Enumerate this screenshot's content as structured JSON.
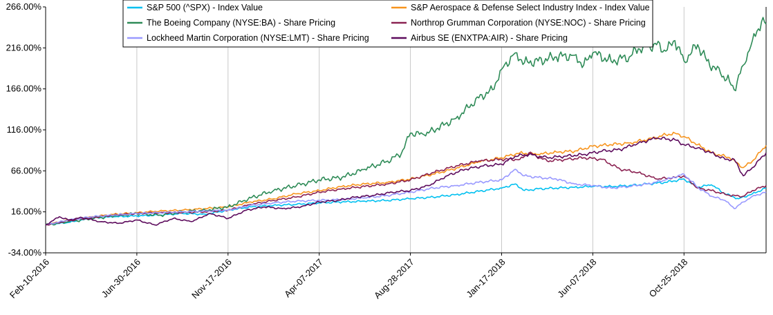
{
  "chart_data": {
    "type": "line",
    "title": "",
    "xlabel": "",
    "ylabel": "",
    "ylim": [
      -34,
      266
    ],
    "y_ticks": [
      "-34.00%",
      "16.00%",
      "66.00%",
      "116.00%",
      "166.00%",
      "216.00%",
      "266.00%"
    ],
    "y_tick_values": [
      -34,
      16,
      66,
      116,
      166,
      216,
      266
    ],
    "x_ticks": [
      "Feb-10-2016",
      "Jun-30-2016",
      "Nov-17-2016",
      "Apr-07-2017",
      "Aug-28-2017",
      "Jan-17-2018",
      "Jun-07-2018",
      "Oct-25-2018"
    ],
    "x_tick_index": [
      0,
      20,
      40,
      60,
      80,
      100,
      120,
      140
    ],
    "x_max_index": 158,
    "grid": "vertical",
    "legend_position": "top",
    "series": [
      {
        "name": "S&P 500 (^SPX) - Index Value",
        "color": "#00c0f0",
        "points": [
          [
            0,
            0
          ],
          [
            5,
            3
          ],
          [
            10,
            8
          ],
          [
            15,
            10
          ],
          [
            20,
            11
          ],
          [
            25,
            12
          ],
          [
            30,
            14
          ],
          [
            35,
            13
          ],
          [
            40,
            18
          ],
          [
            45,
            22
          ],
          [
            50,
            24
          ],
          [
            55,
            25
          ],
          [
            60,
            27
          ],
          [
            65,
            28
          ],
          [
            70,
            29
          ],
          [
            75,
            30
          ],
          [
            80,
            32
          ],
          [
            85,
            34
          ],
          [
            90,
            37
          ],
          [
            95,
            41
          ],
          [
            100,
            45
          ],
          [
            103,
            50
          ],
          [
            105,
            42
          ],
          [
            108,
            44
          ],
          [
            112,
            45
          ],
          [
            116,
            46
          ],
          [
            120,
            47
          ],
          [
            124,
            47
          ],
          [
            128,
            48
          ],
          [
            132,
            50
          ],
          [
            136,
            52
          ],
          [
            140,
            56
          ],
          [
            143,
            46
          ],
          [
            146,
            49
          ],
          [
            149,
            38
          ],
          [
            152,
            32
          ],
          [
            155,
            38
          ],
          [
            158,
            45
          ]
        ]
      },
      {
        "name": "S&P Aerospace & Defense Select Industry Index - Index Value",
        "color": "#f7941d",
        "points": [
          [
            0,
            0
          ],
          [
            5,
            6
          ],
          [
            10,
            10
          ],
          [
            15,
            13
          ],
          [
            20,
            15
          ],
          [
            25,
            17
          ],
          [
            30,
            18
          ],
          [
            35,
            20
          ],
          [
            40,
            22
          ],
          [
            45,
            28
          ],
          [
            50,
            32
          ],
          [
            55,
            38
          ],
          [
            60,
            42
          ],
          [
            65,
            47
          ],
          [
            70,
            50
          ],
          [
            75,
            52
          ],
          [
            80,
            56
          ],
          [
            85,
            62
          ],
          [
            90,
            69
          ],
          [
            95,
            77
          ],
          [
            100,
            82
          ],
          [
            104,
            88
          ],
          [
            108,
            86
          ],
          [
            112,
            89
          ],
          [
            116,
            90
          ],
          [
            120,
            96
          ],
          [
            124,
            98
          ],
          [
            128,
            100
          ],
          [
            132,
            104
          ],
          [
            136,
            110
          ],
          [
            138,
            112
          ],
          [
            140,
            108
          ],
          [
            143,
            98
          ],
          [
            146,
            88
          ],
          [
            150,
            82
          ],
          [
            153,
            70
          ],
          [
            155,
            78
          ],
          [
            158,
            97
          ]
        ]
      },
      {
        "name": "The Boeing Company (NYSE:BA) - Share Pricing",
        "color": "#2e8b57",
        "points": [
          [
            0,
            0
          ],
          [
            5,
            4
          ],
          [
            10,
            8
          ],
          [
            15,
            11
          ],
          [
            20,
            14
          ],
          [
            25,
            12
          ],
          [
            30,
            16
          ],
          [
            35,
            18
          ],
          [
            40,
            22
          ],
          [
            45,
            33
          ],
          [
            50,
            42
          ],
          [
            55,
            48
          ],
          [
            60,
            55
          ],
          [
            65,
            58
          ],
          [
            70,
            68
          ],
          [
            75,
            78
          ],
          [
            78,
            87
          ],
          [
            80,
            112
          ],
          [
            83,
            110
          ],
          [
            86,
            118
          ],
          [
            90,
            130
          ],
          [
            95,
            155
          ],
          [
            98,
            165
          ],
          [
            100,
            190
          ],
          [
            103,
            210
          ],
          [
            105,
            198
          ],
          [
            108,
            200
          ],
          [
            112,
            205
          ],
          [
            116,
            207
          ],
          [
            118,
            195
          ],
          [
            120,
            210
          ],
          [
            124,
            200
          ],
          [
            128,
            205
          ],
          [
            130,
            215
          ],
          [
            134,
            220
          ],
          [
            136,
            212
          ],
          [
            138,
            225
          ],
          [
            140,
            200
          ],
          [
            143,
            220
          ],
          [
            145,
            200
          ],
          [
            148,
            185
          ],
          [
            150,
            175
          ],
          [
            151,
            165
          ],
          [
            153,
            195
          ],
          [
            155,
            225
          ],
          [
            157,
            248
          ],
          [
            158,
            245
          ]
        ]
      },
      {
        "name": "Northrop Grumman Corporation (NYSE:NOC) - Share Pricing",
        "color": "#8b2252",
        "points": [
          [
            0,
            0
          ],
          [
            5,
            5
          ],
          [
            10,
            9
          ],
          [
            15,
            12
          ],
          [
            20,
            14
          ],
          [
            25,
            15
          ],
          [
            30,
            15
          ],
          [
            35,
            16
          ],
          [
            40,
            18
          ],
          [
            45,
            25
          ],
          [
            50,
            30
          ],
          [
            55,
            34
          ],
          [
            60,
            40
          ],
          [
            65,
            44
          ],
          [
            70,
            47
          ],
          [
            75,
            50
          ],
          [
            80,
            55
          ],
          [
            85,
            64
          ],
          [
            90,
            72
          ],
          [
            95,
            78
          ],
          [
            100,
            80
          ],
          [
            104,
            80
          ],
          [
            106,
            88
          ],
          [
            110,
            78
          ],
          [
            114,
            80
          ],
          [
            118,
            82
          ],
          [
            122,
            80
          ],
          [
            126,
            68
          ],
          [
            130,
            64
          ],
          [
            134,
            56
          ],
          [
            138,
            58
          ],
          [
            140,
            60
          ],
          [
            143,
            45
          ],
          [
            146,
            42
          ],
          [
            150,
            36
          ],
          [
            153,
            35
          ],
          [
            155,
            42
          ],
          [
            158,
            48
          ]
        ]
      },
      {
        "name": "Lockheed Martin Corporation (NYSE:LMT) - Share Pricing",
        "color": "#9999ff",
        "points": [
          [
            0,
            0
          ],
          [
            5,
            6
          ],
          [
            10,
            10
          ],
          [
            15,
            12
          ],
          [
            20,
            14
          ],
          [
            25,
            15
          ],
          [
            30,
            16
          ],
          [
            35,
            17
          ],
          [
            40,
            18
          ],
          [
            45,
            24
          ],
          [
            50,
            27
          ],
          [
            55,
            29
          ],
          [
            60,
            30
          ],
          [
            65,
            31
          ],
          [
            70,
            33
          ],
          [
            75,
            36
          ],
          [
            80,
            40
          ],
          [
            85,
            45
          ],
          [
            90,
            48
          ],
          [
            95,
            52
          ],
          [
            100,
            55
          ],
          [
            103,
            68
          ],
          [
            105,
            60
          ],
          [
            108,
            58
          ],
          [
            112,
            56
          ],
          [
            116,
            50
          ],
          [
            120,
            48
          ],
          [
            124,
            45
          ],
          [
            128,
            47
          ],
          [
            132,
            50
          ],
          [
            136,
            55
          ],
          [
            140,
            62
          ],
          [
            143,
            46
          ],
          [
            146,
            35
          ],
          [
            149,
            30
          ],
          [
            151,
            20
          ],
          [
            153,
            28
          ],
          [
            155,
            35
          ],
          [
            158,
            40
          ]
        ]
      },
      {
        "name": "Airbus SE (ENXTPA:AIR) - Share Pricing",
        "color": "#5c0a5c",
        "points": [
          [
            0,
            0
          ],
          [
            3,
            10
          ],
          [
            5,
            6
          ],
          [
            8,
            9
          ],
          [
            12,
            4
          ],
          [
            16,
            2
          ],
          [
            20,
            6
          ],
          [
            24,
            0
          ],
          [
            28,
            8
          ],
          [
            32,
            4
          ],
          [
            36,
            14
          ],
          [
            40,
            8
          ],
          [
            44,
            18
          ],
          [
            48,
            22
          ],
          [
            52,
            20
          ],
          [
            56,
            22
          ],
          [
            60,
            28
          ],
          [
            64,
            30
          ],
          [
            68,
            34
          ],
          [
            72,
            36
          ],
          [
            76,
            40
          ],
          [
            80,
            42
          ],
          [
            84,
            48
          ],
          [
            88,
            60
          ],
          [
            92,
            68
          ],
          [
            96,
            72
          ],
          [
            100,
            74
          ],
          [
            103,
            84
          ],
          [
            106,
            86
          ],
          [
            110,
            82
          ],
          [
            114,
            84
          ],
          [
            118,
            86
          ],
          [
            122,
            90
          ],
          [
            126,
            92
          ],
          [
            130,
            100
          ],
          [
            134,
            106
          ],
          [
            138,
            104
          ],
          [
            140,
            98
          ],
          [
            143,
            94
          ],
          [
            146,
            88
          ],
          [
            149,
            80
          ],
          [
            151,
            80
          ],
          [
            153,
            60
          ],
          [
            155,
            70
          ],
          [
            158,
            88
          ]
        ]
      }
    ]
  }
}
